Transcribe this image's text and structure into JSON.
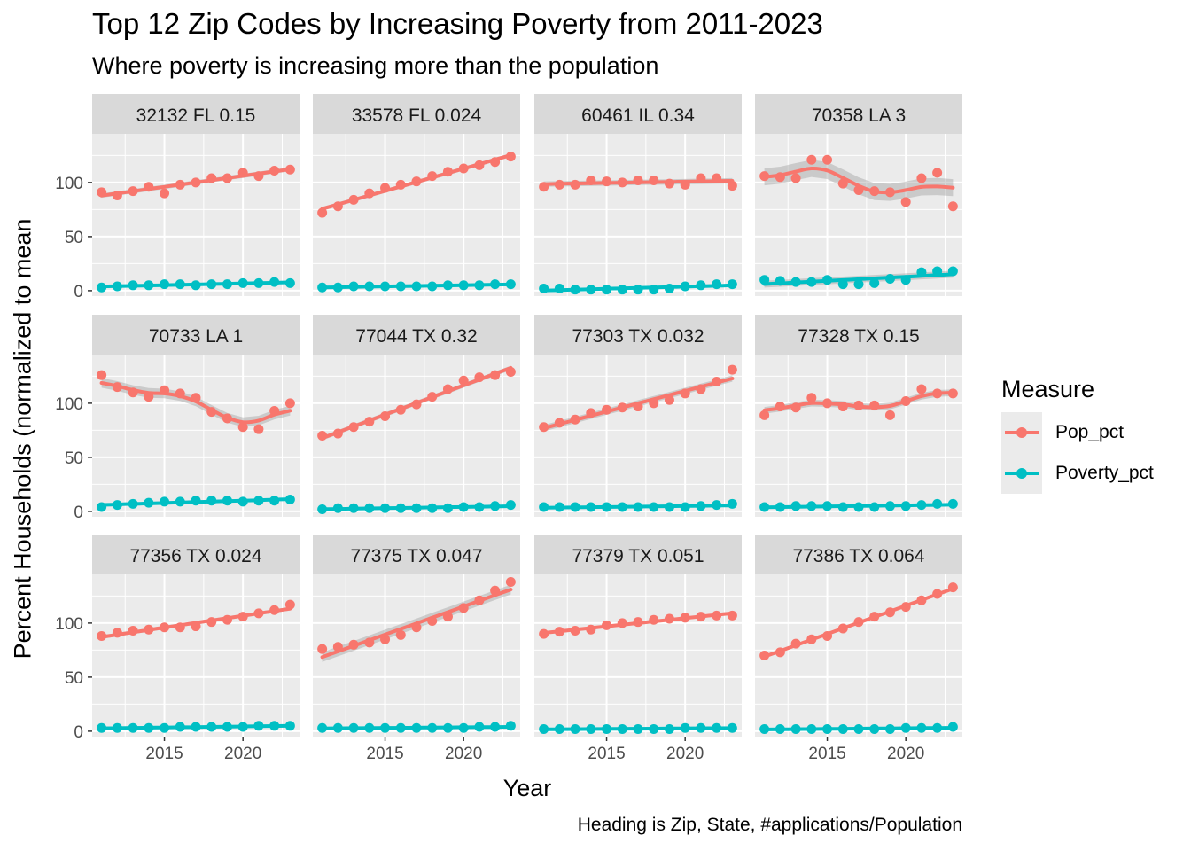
{
  "title": "Top 12 Zip Codes by Increasing Poverty from 2011-2023",
  "subtitle": "Where poverty is increasing more than the population",
  "caption": "Heading is Zip, State, #applications/Population",
  "legend": {
    "title": "Measure",
    "items": [
      {
        "label": "Pop_pct",
        "color": "#F8766D"
      },
      {
        "label": "Poverty_pct",
        "color": "#00BFC4"
      }
    ]
  },
  "chart_data": {
    "type": "line",
    "title": "Top 12 Zip Codes by Increasing Poverty from 2011-2023",
    "subtitle": "Where poverty is increasing more than the population",
    "xlabel": "Year",
    "ylabel": "Percent Households (normalized to mean",
    "x": [
      2011,
      2012,
      2013,
      2014,
      2015,
      2016,
      2017,
      2018,
      2019,
      2020,
      2021,
      2022,
      2023
    ],
    "xlim": [
      2010.4,
      2023.6
    ],
    "ylim": [
      -5,
      145
    ],
    "x_ticks": [
      2015,
      2020
    ],
    "y_ticks": [
      0,
      50,
      100
    ],
    "grid": true,
    "legend_position": "right",
    "smoothing": "loess with confidence band",
    "panels": [
      {
        "heading": "32132 FL 0.15",
        "series": [
          {
            "name": "Pop_pct",
            "values": [
              91,
              88,
              92,
              96,
              90,
              98,
              100,
              104,
              104,
              109,
              106,
              111,
              112
            ]
          },
          {
            "name": "Poverty_pct",
            "values": [
              3,
              4,
              5,
              5,
              6,
              6,
              5,
              6,
              6,
              7,
              7,
              8,
              7
            ]
          }
        ]
      },
      {
        "heading": "33578 FL 0.024",
        "series": [
          {
            "name": "Pop_pct",
            "values": [
              72,
              78,
              84,
              90,
              95,
              98,
              101,
              106,
              110,
              113,
              116,
              119,
              124
            ]
          },
          {
            "name": "Poverty_pct",
            "values": [
              3,
              3,
              4,
              4,
              4,
              4,
              4,
              4,
              5,
              5,
              5,
              6,
              6
            ]
          }
        ]
      },
      {
        "heading": "60461 IL 0.34",
        "series": [
          {
            "name": "Pop_pct",
            "values": [
              96,
              98,
              98,
              102,
              101,
              100,
              102,
              102,
              99,
              98,
              104,
              104,
              97
            ]
          },
          {
            "name": "Poverty_pct",
            "values": [
              2,
              2,
              1,
              1,
              1,
              1,
              1,
              1,
              2,
              4,
              5,
              6,
              6
            ]
          }
        ]
      },
      {
        "heading": "70358 LA 3",
        "series": [
          {
            "name": "Pop_pct",
            "values": [
              106,
              105,
              104,
              121,
              121,
              99,
              93,
              92,
              91,
              82,
              104,
              109,
              78
            ]
          },
          {
            "name": "Poverty_pct",
            "values": [
              10,
              9,
              8,
              8,
              10,
              6,
              6,
              7,
              11,
              10,
              17,
              18,
              18
            ]
          }
        ]
      },
      {
        "heading": "70733 LA 1",
        "series": [
          {
            "name": "Pop_pct",
            "values": [
              126,
              115,
              110,
              106,
              112,
              109,
              105,
              92,
              86,
              78,
              76,
              93,
              100
            ]
          },
          {
            "name": "Poverty_pct",
            "values": [
              4,
              6,
              7,
              8,
              9,
              9,
              10,
              10,
              10,
              9,
              10,
              10,
              11
            ]
          }
        ]
      },
      {
        "heading": "77044 TX 0.32",
        "series": [
          {
            "name": "Pop_pct",
            "values": [
              70,
              72,
              78,
              83,
              88,
              94,
              99,
              106,
              113,
              121,
              124,
              126,
              129
            ]
          },
          {
            "name": "Poverty_pct",
            "values": [
              2,
              3,
              3,
              3,
              3,
              3,
              3,
              3,
              3,
              4,
              4,
              5,
              6
            ]
          }
        ]
      },
      {
        "heading": "77303 TX 0.032",
        "series": [
          {
            "name": "Pop_pct",
            "values": [
              78,
              82,
              85,
              91,
              94,
              96,
              97,
              100,
              103,
              109,
              113,
              120,
              131
            ]
          },
          {
            "name": "Poverty_pct",
            "values": [
              4,
              4,
              4,
              4,
              4,
              4,
              4,
              4,
              4,
              4,
              5,
              6,
              7
            ]
          }
        ]
      },
      {
        "heading": "77328 TX 0.15",
        "series": [
          {
            "name": "Pop_pct",
            "values": [
              89,
              97,
              96,
              105,
              100,
              97,
              98,
              98,
              89,
              102,
              113,
              109,
              109
            ]
          },
          {
            "name": "Poverty_pct",
            "values": [
              4,
              4,
              5,
              5,
              5,
              4,
              4,
              4,
              5,
              5,
              6,
              7,
              7
            ]
          }
        ]
      },
      {
        "heading": "77356 TX 0.024",
        "series": [
          {
            "name": "Pop_pct",
            "values": [
              88,
              91,
              93,
              94,
              96,
              96,
              97,
              101,
              103,
              106,
              109,
              112,
              117
            ]
          },
          {
            "name": "Poverty_pct",
            "values": [
              3,
              3,
              3,
              3,
              3,
              4,
              4,
              4,
              4,
              4,
              5,
              5,
              5
            ]
          }
        ]
      },
      {
        "heading": "77375 TX 0.047",
        "series": [
          {
            "name": "Pop_pct",
            "values": [
              76,
              78,
              80,
              82,
              85,
              89,
              96,
              102,
              106,
              114,
              121,
              130,
              138
            ]
          },
          {
            "name": "Poverty_pct",
            "values": [
              3,
              3,
              3,
              3,
              3,
              3,
              3,
              3,
              3,
              3,
              4,
              4,
              5
            ]
          }
        ]
      },
      {
        "heading": "77379 TX 0.051",
        "series": [
          {
            "name": "Pop_pct",
            "values": [
              90,
              92,
              93,
              94,
              98,
              100,
              101,
              103,
              104,
              105,
              106,
              107,
              107
            ]
          },
          {
            "name": "Poverty_pct",
            "values": [
              2,
              2,
              2,
              2,
              2,
              2,
              2,
              2,
              2,
              3,
              3,
              3,
              3
            ]
          }
        ]
      },
      {
        "heading": "77386 TX 0.064",
        "series": [
          {
            "name": "Pop_pct",
            "values": [
              70,
              73,
              81,
              85,
              88,
              95,
              101,
              106,
              110,
              115,
              121,
              127,
              133
            ]
          },
          {
            "name": "Poverty_pct",
            "values": [
              2,
              2,
              2,
              2,
              2,
              2,
              2,
              2,
              2,
              3,
              3,
              3,
              4
            ]
          }
        ]
      }
    ]
  }
}
